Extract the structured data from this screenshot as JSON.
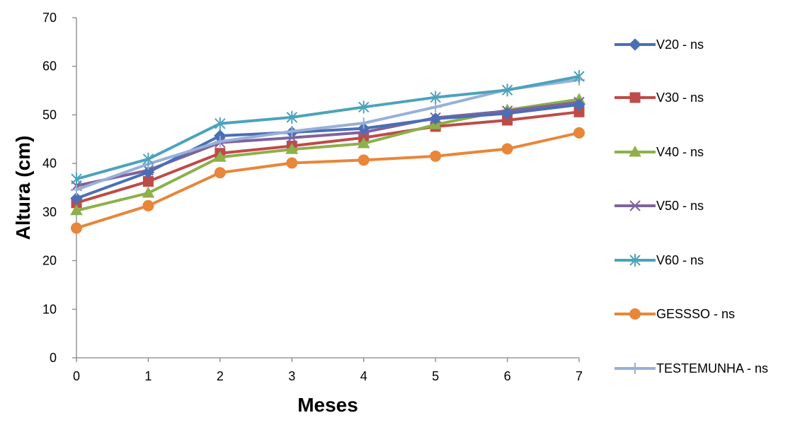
{
  "chart_data": {
    "type": "line",
    "title": "",
    "xlabel": "Meses",
    "ylabel": "Altura (cm)",
    "x": [
      0,
      1,
      2,
      3,
      4,
      5,
      6,
      7
    ],
    "ylim": [
      0,
      70
    ],
    "yticks": [
      0,
      10,
      20,
      30,
      40,
      50,
      60,
      70
    ],
    "grid": false,
    "legend_position": "right",
    "series": [
      {
        "name": "V20 - ns",
        "marker": "diamond",
        "color": "#4A6FB5",
        "values": [
          32.8,
          38.2,
          45.7,
          46.4,
          47.2,
          49.2,
          50.3,
          52.1
        ]
      },
      {
        "name": "V30 - ns",
        "marker": "square",
        "color": "#BE4B48",
        "values": [
          31.9,
          36.3,
          42.1,
          43.6,
          45.3,
          47.6,
          48.9,
          50.6
        ]
      },
      {
        "name": "V40 - ns",
        "marker": "triangle",
        "color": "#8DB04A",
        "values": [
          30.3,
          33.9,
          41.3,
          42.9,
          44.1,
          48.0,
          51.0,
          53.2
        ]
      },
      {
        "name": "V50 - ns",
        "marker": "x",
        "color": "#7E639F",
        "values": [
          35.4,
          38.6,
          44.3,
          45.3,
          46.4,
          49.4,
          50.8,
          52.6
        ]
      },
      {
        "name": "V60 - ns",
        "marker": "star",
        "color": "#4BA3BC",
        "values": [
          36.8,
          40.9,
          48.2,
          49.5,
          51.6,
          53.6,
          55.1,
          57.9
        ]
      },
      {
        "name": "GESSSO - ns",
        "marker": "circle",
        "color": "#E8863A",
        "values": [
          26.7,
          31.3,
          38.1,
          40.1,
          40.7,
          41.5,
          43.0,
          46.3
        ]
      },
      {
        "name": "TESTEMUNHA - ns",
        "marker": "plus",
        "color": "#98B0D8",
        "values": [
          34.6,
          39.9,
          44.5,
          46.6,
          48.3,
          51.6,
          55.2,
          57.2
        ]
      }
    ]
  }
}
